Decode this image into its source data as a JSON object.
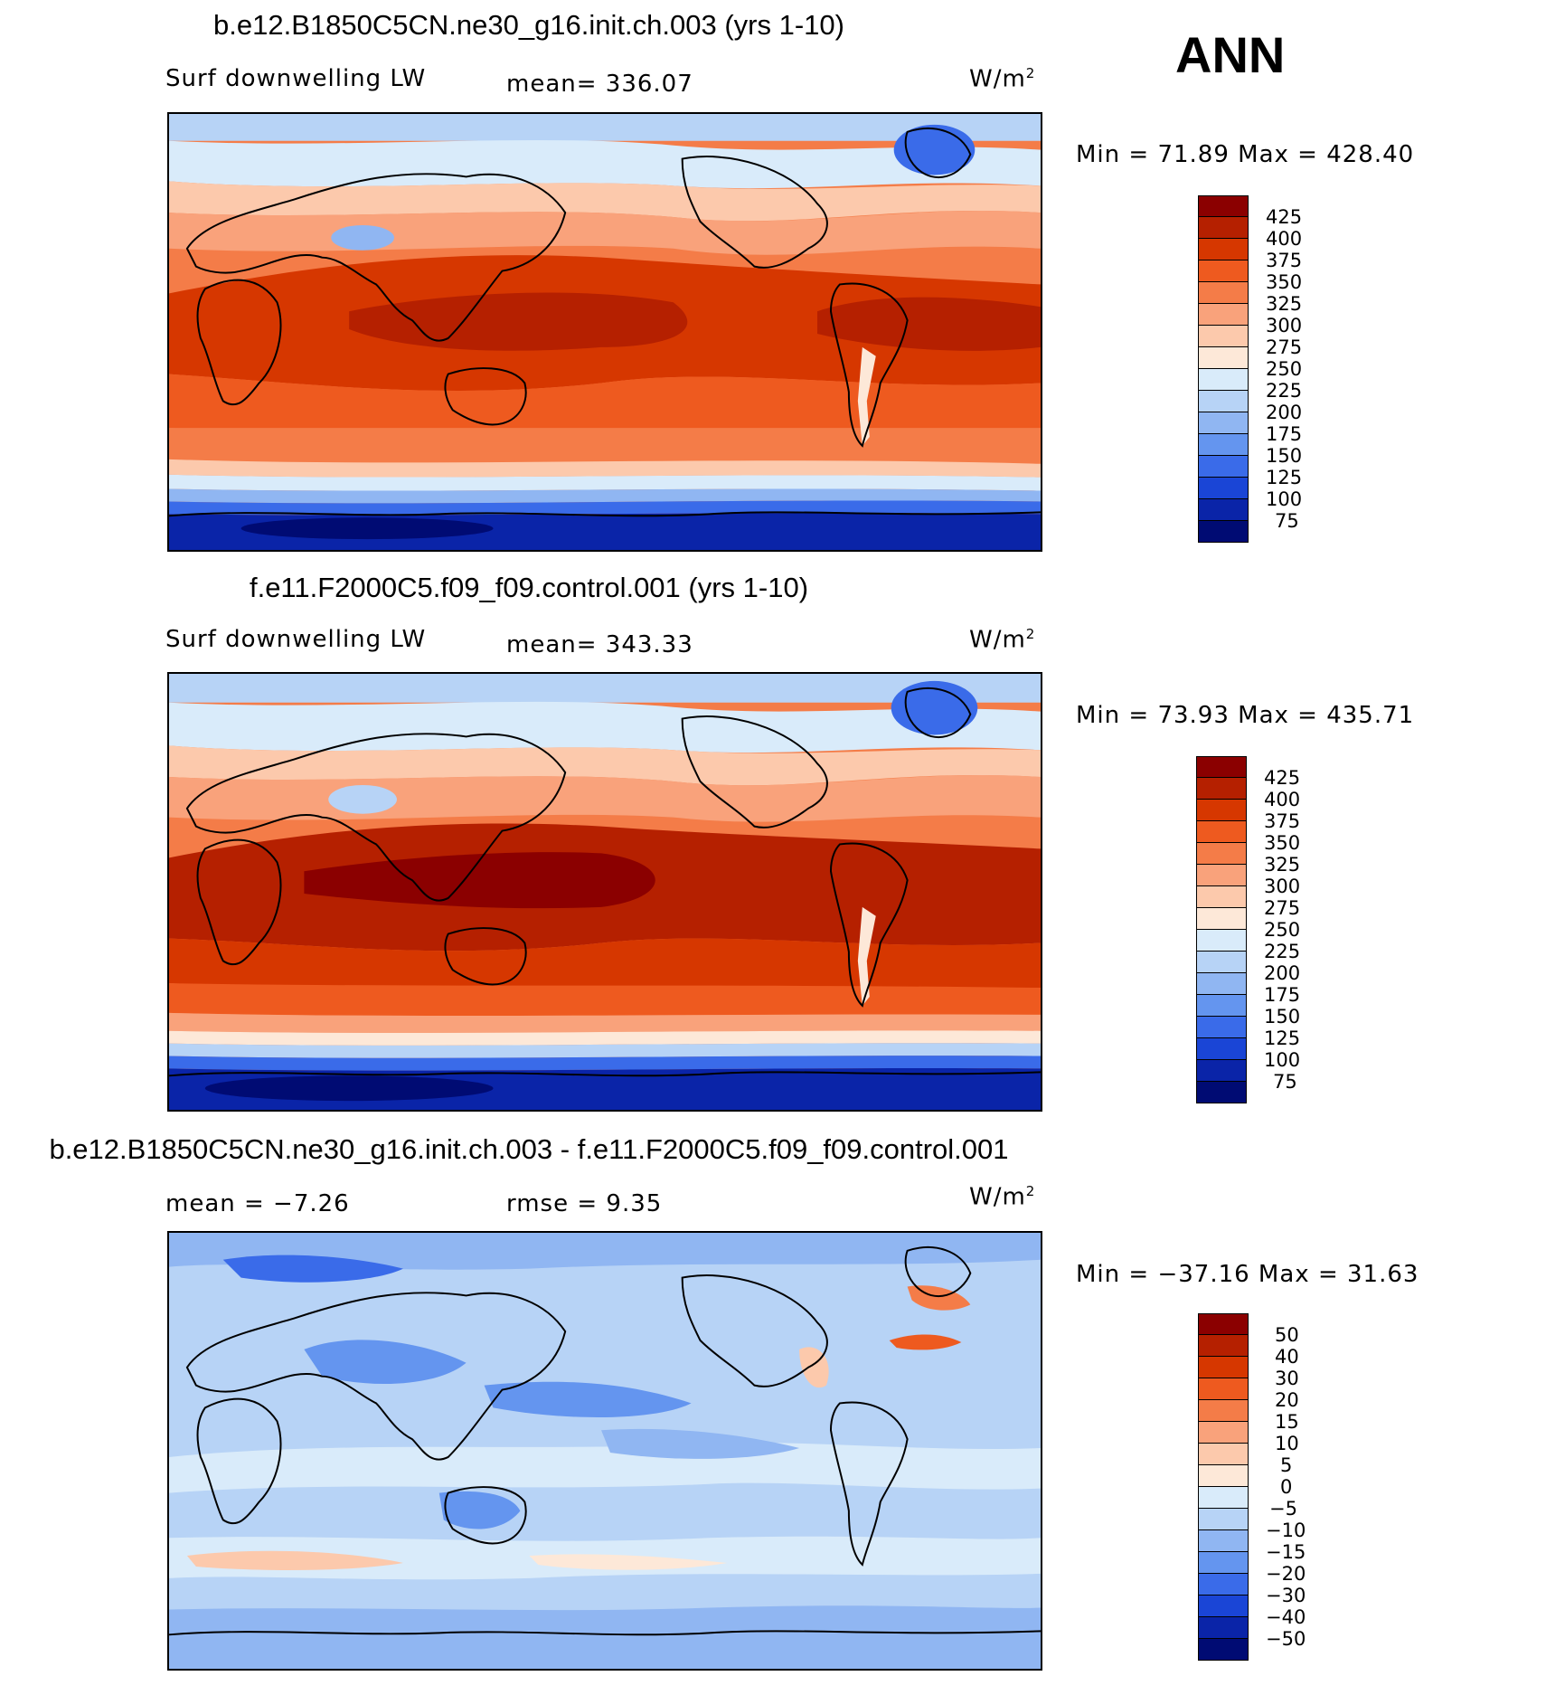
{
  "season": "ANN",
  "units_label": "W/m",
  "units_sup": "2",
  "panels": [
    {
      "title": "b.e12.B1850C5CN.ne30_g16.init.ch.003 (yrs 1-10)",
      "left_label": "Surf downwelling LW",
      "center_label": "mean=  336.07",
      "min_max": "Min =   71.89 Max =  428.40",
      "ticks": [
        "425",
        "400",
        "375",
        "350",
        "325",
        "300",
        "275",
        "250",
        "225",
        "200",
        "175",
        "150",
        "125",
        "100",
        "75"
      ],
      "colors": [
        "#8b0000",
        "#b52000",
        "#d63700",
        "#ee5a1f",
        "#f47c48",
        "#f9a27b",
        "#fcc9ac",
        "#fde8d8",
        "#d9ebfa",
        "#b7d3f6",
        "#90b6f2",
        "#6495ef",
        "#3a6be9",
        "#1a45d6",
        "#0a24a8",
        "#000b73"
      ]
    },
    {
      "title": "f.e11.F2000C5.f09_f09.control.001 (yrs 1-10)",
      "left_label": "Surf downwelling LW",
      "center_label": "mean=  343.33",
      "min_max": "Min =   73.93 Max =  435.71",
      "ticks": [
        "425",
        "400",
        "375",
        "350",
        "325",
        "300",
        "275",
        "250",
        "225",
        "200",
        "175",
        "150",
        "125",
        "100",
        "75"
      ],
      "colors": [
        "#8b0000",
        "#b52000",
        "#d63700",
        "#ee5a1f",
        "#f47c48",
        "#f9a27b",
        "#fcc9ac",
        "#fde8d8",
        "#d9ebfa",
        "#b7d3f6",
        "#90b6f2",
        "#6495ef",
        "#3a6be9",
        "#1a45d6",
        "#0a24a8",
        "#000b73"
      ]
    },
    {
      "title": "b.e12.B1850C5CN.ne30_g16.init.ch.003 - f.e11.F2000C5.f09_f09.control.001",
      "left_label": "mean =   −7.26",
      "center_label": "rmse =     9.35",
      "min_max": "Min = −37.16 Max =   31.63",
      "ticks": [
        "50",
        "40",
        "30",
        "20",
        "15",
        "10",
        "5",
        "0",
        "−5",
        "−10",
        "−15",
        "−20",
        "−30",
        "−40",
        "−50"
      ],
      "colors": [
        "#8b0000",
        "#b52000",
        "#d63700",
        "#ee5a1f",
        "#f47c48",
        "#f9a27b",
        "#fcc9ac",
        "#fde8d8",
        "#d9ebfa",
        "#b7d3f6",
        "#90b6f2",
        "#6495ef",
        "#3a6be9",
        "#1a45d6",
        "#0a24a8",
        "#000b73"
      ]
    }
  ]
}
